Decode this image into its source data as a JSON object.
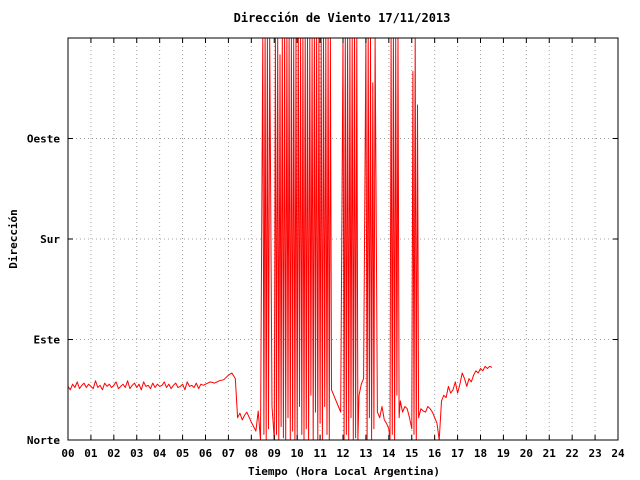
{
  "chart_data": {
    "type": "line",
    "title": "Dirección de Viento 17/11/2013",
    "xlabel": "Tiempo (Hora Local Argentina)",
    "ylabel": "Dirección",
    "xlim": [
      0,
      24
    ],
    "ylim": [
      0,
      360
    ],
    "grid": true,
    "x_ticks": [
      {
        "value": 0,
        "label": "00"
      },
      {
        "value": 1,
        "label": "01"
      },
      {
        "value": 2,
        "label": "02"
      },
      {
        "value": 3,
        "label": "03"
      },
      {
        "value": 4,
        "label": "04"
      },
      {
        "value": 5,
        "label": "05"
      },
      {
        "value": 6,
        "label": "06"
      },
      {
        "value": 7,
        "label": "07"
      },
      {
        "value": 8,
        "label": "08"
      },
      {
        "value": 9,
        "label": "09"
      },
      {
        "value": 10,
        "label": "10"
      },
      {
        "value": 11,
        "label": "11"
      },
      {
        "value": 12,
        "label": "12"
      },
      {
        "value": 13,
        "label": "13"
      },
      {
        "value": 14,
        "label": "14"
      },
      {
        "value": 15,
        "label": "15"
      },
      {
        "value": 16,
        "label": "16"
      },
      {
        "value": 17,
        "label": "17"
      },
      {
        "value": 18,
        "label": "18"
      },
      {
        "value": 19,
        "label": "19"
      },
      {
        "value": 20,
        "label": "20"
      },
      {
        "value": 21,
        "label": "21"
      },
      {
        "value": 22,
        "label": "22"
      },
      {
        "value": 23,
        "label": "23"
      },
      {
        "value": 24,
        "label": "24"
      }
    ],
    "y_ticks": [
      {
        "value": 0,
        "label": "Norte"
      },
      {
        "value": 90,
        "label": "Este"
      },
      {
        "value": 180,
        "label": "Sur"
      },
      {
        "value": 270,
        "label": "Oeste"
      }
    ],
    "series": [
      {
        "color": "#ff0000",
        "x": [
          0.0,
          0.1,
          0.2,
          0.3,
          0.4,
          0.5,
          0.6,
          0.7,
          0.8,
          0.9,
          1.0,
          1.1,
          1.2,
          1.3,
          1.4,
          1.5,
          1.6,
          1.7,
          1.8,
          1.9,
          2.0,
          2.1,
          2.2,
          2.3,
          2.4,
          2.5,
          2.6,
          2.7,
          2.8,
          2.9,
          3.0,
          3.1,
          3.2,
          3.3,
          3.4,
          3.5,
          3.6,
          3.7,
          3.8,
          3.9,
          4.0,
          4.1,
          4.2,
          4.3,
          4.4,
          4.5,
          4.6,
          4.7,
          4.8,
          4.9,
          5.0,
          5.1,
          5.2,
          5.3,
          5.4,
          5.5,
          5.6,
          5.7,
          5.8,
          5.9,
          6.0,
          6.2,
          6.4,
          6.6,
          6.8,
          7.0,
          7.15,
          7.3,
          7.4,
          7.5,
          7.6,
          7.7,
          7.8,
          8.0,
          8.2,
          8.3,
          8.4,
          8.5,
          8.55,
          8.6,
          8.65,
          8.7,
          8.75,
          8.8,
          8.9,
          9.0,
          9.05,
          9.1,
          9.15,
          9.2,
          9.25,
          9.3,
          9.35,
          9.4,
          9.45,
          9.5,
          9.55,
          9.6,
          9.65,
          9.7,
          9.75,
          9.8,
          9.85,
          9.9,
          9.95,
          10.0,
          10.05,
          10.1,
          10.15,
          10.2,
          10.25,
          10.3,
          10.35,
          10.4,
          10.45,
          10.5,
          10.55,
          10.6,
          10.65,
          10.7,
          10.75,
          10.8,
          10.85,
          10.9,
          10.95,
          11.0,
          11.05,
          11.1,
          11.15,
          11.2,
          11.25,
          11.3,
          11.35,
          11.4,
          11.45,
          11.5,
          11.6,
          11.7,
          11.8,
          11.9,
          12.0,
          12.05,
          12.1,
          12.15,
          12.2,
          12.25,
          12.3,
          12.35,
          12.4,
          12.45,
          12.5,
          12.55,
          12.6,
          12.65,
          12.7,
          12.8,
          12.9,
          13.0,
          13.05,
          13.1,
          13.15,
          13.2,
          13.25,
          13.3,
          13.35,
          13.4,
          13.5,
          13.6,
          13.7,
          13.8,
          13.9,
          14.0,
          14.05,
          14.1,
          14.15,
          14.2,
          14.25,
          14.3,
          14.35,
          14.4,
          14.45,
          14.5,
          14.6,
          14.7,
          14.8,
          14.9,
          15.0,
          15.05,
          15.1,
          15.15,
          15.2,
          15.25,
          15.3,
          15.4,
          15.5,
          15.6,
          15.7,
          15.8,
          15.9,
          16.0,
          16.1,
          16.2,
          16.3,
          16.4,
          16.5,
          16.6,
          16.7,
          16.8,
          16.9,
          17.0,
          17.1,
          17.2,
          17.3,
          17.4,
          17.5,
          17.6,
          17.7,
          17.8,
          17.9,
          18.0,
          18.1,
          18.2,
          18.3,
          18.4,
          18.5
        ],
        "y": [
          48,
          45,
          50,
          47,
          52,
          46,
          49,
          51,
          47,
          50,
          48,
          46,
          53,
          47,
          49,
          45,
          51,
          48,
          50,
          47,
          49,
          52,
          46,
          48,
          50,
          47,
          53,
          46,
          49,
          51,
          47,
          50,
          45,
          52,
          48,
          49,
          46,
          51,
          47,
          50,
          48,
          49,
          52,
          47,
          50,
          46,
          49,
          51,
          47,
          48,
          50,
          45,
          52,
          48,
          49,
          47,
          51,
          46,
          50,
          49,
          50,
          52,
          51,
          53,
          54,
          58,
          60,
          55,
          20,
          24,
          18,
          22,
          25,
          16,
          8,
          26,
          0,
          360,
          5,
          360,
          0,
          360,
          10,
          360,
          30,
          0,
          360,
          5,
          360,
          0,
          345,
          12,
          360,
          2,
          360,
          0,
          360,
          20,
          360,
          0,
          360,
          8,
          360,
          0,
          360,
          0,
          360,
          30,
          360,
          5,
          360,
          0,
          360,
          10,
          360,
          0,
          360,
          40,
          360,
          0,
          360,
          25,
          360,
          0,
          360,
          15,
          360,
          0,
          360,
          30,
          360,
          5,
          360,
          0,
          360,
          45,
          40,
          35,
          30,
          25,
          360,
          0,
          360,
          5,
          360,
          0,
          360,
          20,
          360,
          0,
          360,
          2,
          360,
          0,
          40,
          50,
          55,
          360,
          0,
          360,
          20,
          360,
          0,
          320,
          10,
          360,
          25,
          20,
          30,
          18,
          15,
          10,
          0,
          360,
          5,
          360,
          0,
          360,
          40,
          360,
          20,
          35,
          25,
          30,
          28,
          20,
          10,
          330,
          5,
          360,
          0,
          300,
          20,
          28,
          26,
          25,
          30,
          28,
          25,
          20,
          15,
          0,
          35,
          40,
          38,
          48,
          42,
          45,
          52,
          42,
          50,
          60,
          55,
          48,
          55,
          52,
          58,
          62,
          60,
          64,
          62,
          66,
          64,
          66,
          65
        ]
      }
    ]
  }
}
